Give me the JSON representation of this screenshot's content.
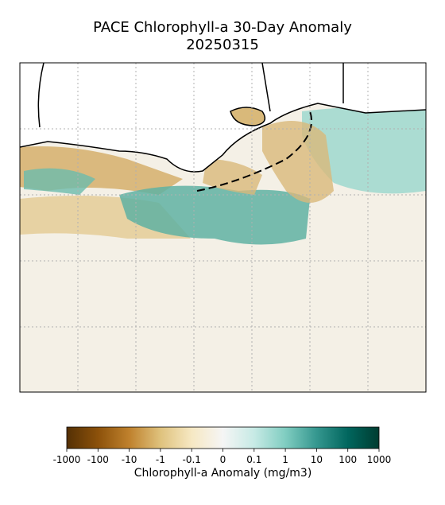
{
  "title": "PACE Chlorophyll-a 30-Day Anomaly",
  "subtitle": "20250315",
  "colorbar": {
    "label": "Chlorophyll-a Anomaly (mg/m3)",
    "scale": "symlog",
    "lim": [
      -1000,
      1000
    ],
    "ticks": [
      -1000,
      -100,
      -10,
      -1,
      -0.1,
      0,
      0.1,
      1,
      10,
      100,
      1000
    ],
    "colors": [
      "#543005",
      "#8c510a",
      "#bf812d",
      "#dfc27d",
      "#f6e8c3",
      "#f5f5f5",
      "#c7eae5",
      "#80cdc1",
      "#35978f",
      "#01665e",
      "#003c30"
    ]
  }
}
